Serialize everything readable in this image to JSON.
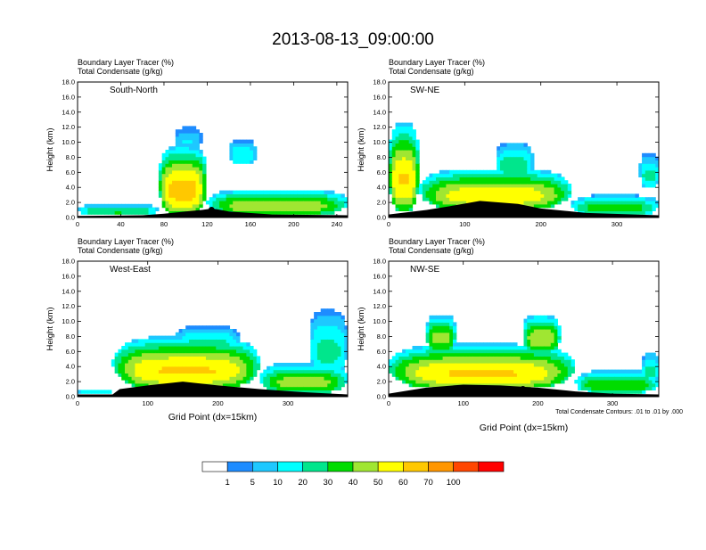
{
  "title": "2013-08-13_09:00:00",
  "shared": {
    "subtitle_line1": "Boundary Layer Tracer   (%)",
    "subtitle_line2": "Total Condensate   (g/kg)",
    "ylabel": "Height (km)",
    "xlabel": "Grid Point (dx=15km)",
    "contour_note": "Total Condensate Contours: .01 to .01 by .000"
  },
  "colors": {
    "levels": [
      "#ffffff",
      "#1e8cff",
      "#1ec8ff",
      "#00ffff",
      "#00e68c",
      "#00dc00",
      "#a0e632",
      "#ffff00",
      "#ffc800",
      "#ff9600",
      "#ff4600",
      "#ff0000"
    ],
    "terrain": "#000000"
  },
  "colorbar": {
    "labels": [
      "1",
      "5",
      "10",
      "20",
      "30",
      "40",
      "50",
      "60",
      "70",
      "100"
    ]
  },
  "chart_data": [
    {
      "type": "heatmap",
      "name": "South-North",
      "subtitle_line1": "Boundary Layer Tracer   (%)",
      "subtitle_line2": "Total Condensate   (g/kg)",
      "panel_label": "South-North",
      "xlim": [
        0,
        250
      ],
      "ylim": [
        0,
        18
      ],
      "xticks": [
        "0",
        "40",
        "80",
        "120",
        "160",
        "200",
        "240"
      ],
      "yticks": [
        "0.0",
        "2.0",
        "4.0",
        "6.0",
        "8.0",
        "10.0",
        "12.0",
        "14.0",
        "16.0",
        "18.0"
      ],
      "xlabel": "",
      "ylabel": "Height (km)",
      "plumes": [
        {
          "x": [
            0,
            75
          ],
          "z": [
            0.3,
            1.8
          ],
          "peak": 0.55
        },
        {
          "x": [
            75,
            120
          ],
          "z": [
            0.5,
            9.5
          ],
          "peak": 0.95
        },
        {
          "x": [
            120,
            250
          ],
          "z": [
            0.3,
            3.8
          ],
          "peak": 0.75
        },
        {
          "x": [
            140,
            165
          ],
          "z": [
            7.0,
            10.5
          ],
          "peak": 0.4
        },
        {
          "x": [
            90,
            115
          ],
          "z": [
            9.0,
            12.0
          ],
          "peak": 0.3
        }
      ],
      "terrain": [
        [
          0,
          0.2
        ],
        [
          60,
          0.3
        ],
        [
          80,
          0.5
        ],
        [
          100,
          0.8
        ],
        [
          115,
          1.0
        ],
        [
          125,
          1.2
        ],
        [
          140,
          0.8
        ],
        [
          180,
          0.4
        ],
        [
          250,
          0.3
        ]
      ],
      "marker": {
        "x": 124,
        "z": 1.0
      }
    },
    {
      "type": "heatmap",
      "name": "SW-NE",
      "subtitle_line1": "Boundary Layer Tracer   (%)",
      "subtitle_line2": "Total Condensate   (g/kg)",
      "panel_label": "SW-NE",
      "xlim": [
        0,
        355
      ],
      "ylim": [
        0,
        18
      ],
      "xticks": [
        "0",
        "100",
        "200",
        "300"
      ],
      "yticks": [
        "0.0",
        "2.0",
        "4.0",
        "6.0",
        "8.0",
        "10.0",
        "12.0",
        "14.0",
        "16.0",
        "18.0"
      ],
      "xlabel": "",
      "ylabel": "Height (km)",
      "plumes": [
        {
          "x": [
            0,
            40
          ],
          "z": [
            1.0,
            12.5
          ],
          "peak": 0.9
        },
        {
          "x": [
            40,
            240
          ],
          "z": [
            1.0,
            6.5
          ],
          "peak": 0.85
        },
        {
          "x": [
            240,
            355
          ],
          "z": [
            0.3,
            3.0
          ],
          "peak": 0.6
        },
        {
          "x": [
            140,
            190
          ],
          "z": [
            5.0,
            10.0
          ],
          "peak": 0.5
        },
        {
          "x": [
            330,
            355
          ],
          "z": [
            4.0,
            8.5
          ],
          "peak": 0.45
        }
      ],
      "terrain": [
        [
          0,
          0.4
        ],
        [
          50,
          1.0
        ],
        [
          80,
          1.5
        ],
        [
          120,
          2.2
        ],
        [
          170,
          1.8
        ],
        [
          200,
          1.2
        ],
        [
          260,
          0.6
        ],
        [
          355,
          0.3
        ]
      ],
      "marker": {
        "x": 178,
        "z": 1.0
      }
    },
    {
      "type": "heatmap",
      "name": "West-East",
      "subtitle_line1": "Boundary Layer Tracer   (%)",
      "subtitle_line2": "Total Condensate   (g/kg)",
      "panel_label": "West-East",
      "xlim": [
        0,
        385
      ],
      "ylim": [
        0,
        18
      ],
      "xticks": [
        "0",
        "100",
        "200",
        "300"
      ],
      "yticks": [
        "0.0",
        "2.0",
        "4.0",
        "6.0",
        "8.0",
        "10.0",
        "12.0",
        "14.0",
        "16.0",
        "18.0"
      ],
      "xlabel": "Grid Point (dx=15km)",
      "ylabel": "Height (km)",
      "plumes": [
        {
          "x": [
            0,
            50
          ],
          "z": [
            0.3,
            0.9
          ],
          "peak": 0.5
        },
        {
          "x": [
            50,
            260
          ],
          "z": [
            1.0,
            8.0
          ],
          "peak": 0.9
        },
        {
          "x": [
            260,
            385
          ],
          "z": [
            0.5,
            4.5
          ],
          "peak": 0.7
        },
        {
          "x": [
            140,
            230
          ],
          "z": [
            6.0,
            9.5
          ],
          "peak": 0.45
        },
        {
          "x": [
            330,
            385
          ],
          "z": [
            3.0,
            11.5
          ],
          "peak": 0.45
        }
      ],
      "terrain": [
        [
          0,
          0.3
        ],
        [
          50,
          0.3
        ],
        [
          60,
          1.0
        ],
        [
          100,
          1.5
        ],
        [
          150,
          2.0
        ],
        [
          200,
          1.5
        ],
        [
          260,
          1.0
        ],
        [
          320,
          0.6
        ],
        [
          385,
          0.3
        ]
      ],
      "marker": {
        "x": 193,
        "z": 1.0
      }
    },
    {
      "type": "heatmap",
      "name": "NW-SE",
      "subtitle_line1": "Boundary Layer Tracer   (%)",
      "subtitle_line2": "Total Condensate   (g/kg)",
      "panel_label": "NW-SE",
      "xlim": [
        0,
        362
      ],
      "ylim": [
        0,
        18
      ],
      "xticks": [
        "0",
        "100",
        "200",
        "300"
      ],
      "yticks": [
        "0.0",
        "2.0",
        "4.0",
        "6.0",
        "8.0",
        "10.0",
        "12.0",
        "14.0",
        "16.0",
        "18.0"
      ],
      "xlabel": "Grid Point (dx=15km)",
      "ylabel": "Height (km)",
      "plumes": [
        {
          "x": [
            0,
            250
          ],
          "z": [
            1.0,
            7.0
          ],
          "peak": 0.9
        },
        {
          "x": [
            50,
            90
          ],
          "z": [
            6.0,
            11.0
          ],
          "peak": 0.7
        },
        {
          "x": [
            180,
            230
          ],
          "z": [
            6.0,
            11.0
          ],
          "peak": 0.75
        },
        {
          "x": [
            250,
            362
          ],
          "z": [
            0.5,
            3.5
          ],
          "peak": 0.65
        },
        {
          "x": [
            340,
            362
          ],
          "z": [
            2.0,
            6.0
          ],
          "peak": 0.45
        }
      ],
      "terrain": [
        [
          0,
          0.4
        ],
        [
          50,
          1.2
        ],
        [
          100,
          1.6
        ],
        [
          150,
          1.5
        ],
        [
          200,
          1.2
        ],
        [
          250,
          0.7
        ],
        [
          300,
          0.4
        ],
        [
          362,
          0.3
        ]
      ],
      "marker": {
        "x": 180,
        "z": 1.0
      }
    }
  ]
}
